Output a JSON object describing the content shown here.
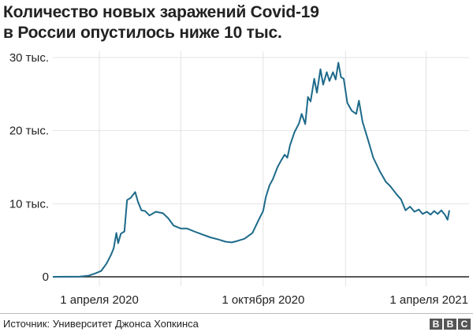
{
  "chart_data": {
    "type": "line",
    "title": "Количество новых заражений Covid-19 в России опустилось ниже 10 тыс.",
    "title_lines": [
      "Количество новых заражений Covid-19",
      "в России опустилось ниже 10 тыс."
    ],
    "xlabel": "",
    "ylabel": "",
    "ylim": [
      0,
      30000
    ],
    "xlim": [
      "2020-02-09",
      "2021-05-19"
    ],
    "grid": true,
    "line_color": "#1d6a8a",
    "y_ticks": [
      {
        "value": 0,
        "label": "0"
      },
      {
        "value": 10000,
        "label": "10 тыс."
      },
      {
        "value": 20000,
        "label": "20 тыс."
      },
      {
        "value": 30000,
        "label": "30 тыс."
      }
    ],
    "x_gridlines": [
      "2020-04-01",
      "2020-07-01",
      "2020-10-01",
      "2021-01-01",
      "2021-04-01"
    ],
    "x_ticks": [
      {
        "date": "2020-04-01",
        "label": "1 апреля 2020"
      },
      {
        "date": "2020-10-01",
        "label": "1 октября 2020"
      },
      {
        "date": "2021-04-01",
        "label": "1 апреля 2021"
      }
    ],
    "series": [
      {
        "points": [
          [
            "2020-02-09",
            0
          ],
          [
            "2020-03-10",
            20
          ],
          [
            "2020-03-20",
            150
          ],
          [
            "2020-03-28",
            500
          ],
          [
            "2020-04-03",
            800
          ],
          [
            "2020-04-09",
            1800
          ],
          [
            "2020-04-14",
            3000
          ],
          [
            "2020-04-17",
            3900
          ],
          [
            "2020-04-20",
            6000
          ],
          [
            "2020-04-22",
            4600
          ],
          [
            "2020-04-25",
            5900
          ],
          [
            "2020-04-29",
            6200
          ],
          [
            "2020-05-02",
            10500
          ],
          [
            "2020-05-06",
            10800
          ],
          [
            "2020-05-11",
            11600
          ],
          [
            "2020-05-14",
            10300
          ],
          [
            "2020-05-18",
            9100
          ],
          [
            "2020-05-22",
            9000
          ],
          [
            "2020-05-27",
            8400
          ],
          [
            "2020-06-03",
            8900
          ],
          [
            "2020-06-11",
            8700
          ],
          [
            "2020-06-17",
            8000
          ],
          [
            "2020-06-23",
            7000
          ],
          [
            "2020-07-01",
            6600
          ],
          [
            "2020-07-08",
            6600
          ],
          [
            "2020-07-16",
            6200
          ],
          [
            "2020-07-25",
            5800
          ],
          [
            "2020-08-03",
            5400
          ],
          [
            "2020-08-12",
            5100
          ],
          [
            "2020-08-20",
            4800
          ],
          [
            "2020-08-27",
            4700
          ],
          [
            "2020-09-02",
            4900
          ],
          [
            "2020-09-10",
            5200
          ],
          [
            "2020-09-19",
            6000
          ],
          [
            "2020-09-26",
            7800
          ],
          [
            "2020-10-01",
            9000
          ],
          [
            "2020-10-04",
            10900
          ],
          [
            "2020-10-08",
            12500
          ],
          [
            "2020-10-12",
            13400
          ],
          [
            "2020-10-17",
            15000
          ],
          [
            "2020-10-21",
            15900
          ],
          [
            "2020-10-25",
            16700
          ],
          [
            "2020-10-28",
            16300
          ],
          [
            "2020-10-31",
            18000
          ],
          [
            "2020-11-05",
            19800
          ],
          [
            "2020-11-10",
            21000
          ],
          [
            "2020-11-13",
            22300
          ],
          [
            "2020-11-17",
            20900
          ],
          [
            "2020-11-20",
            24600
          ],
          [
            "2020-11-23",
            24000
          ],
          [
            "2020-11-27",
            27100
          ],
          [
            "2020-11-30",
            25200
          ],
          [
            "2020-12-04",
            28400
          ],
          [
            "2020-12-07",
            26300
          ],
          [
            "2020-12-11",
            28000
          ],
          [
            "2020-12-14",
            26800
          ],
          [
            "2020-12-18",
            28000
          ],
          [
            "2020-12-21",
            27000
          ],
          [
            "2020-12-24",
            29300
          ],
          [
            "2020-12-27",
            27300
          ],
          [
            "2020-12-30",
            27100
          ],
          [
            "2021-01-03",
            23800
          ],
          [
            "2021-01-08",
            22700
          ],
          [
            "2021-01-13",
            22300
          ],
          [
            "2021-01-16",
            24100
          ],
          [
            "2021-01-20",
            21200
          ],
          [
            "2021-01-26",
            18800
          ],
          [
            "2021-02-01",
            16300
          ],
          [
            "2021-02-08",
            14500
          ],
          [
            "2021-02-15",
            13000
          ],
          [
            "2021-02-20",
            12400
          ],
          [
            "2021-02-27",
            11300
          ],
          [
            "2021-03-04",
            10600
          ],
          [
            "2021-03-09",
            9100
          ],
          [
            "2021-03-14",
            9600
          ],
          [
            "2021-03-19",
            8900
          ],
          [
            "2021-03-24",
            9200
          ],
          [
            "2021-03-28",
            8600
          ],
          [
            "2021-04-02",
            8900
          ],
          [
            "2021-04-06",
            8500
          ],
          [
            "2021-04-10",
            9000
          ],
          [
            "2021-04-14",
            8600
          ],
          [
            "2021-04-18",
            9100
          ],
          [
            "2021-04-22",
            8500
          ],
          [
            "2021-04-25",
            7800
          ],
          [
            "2021-04-27",
            9100
          ]
        ]
      }
    ]
  },
  "source": "Источник: Университет Джонса Хопкинса",
  "logo": [
    "B",
    "B",
    "C"
  ]
}
